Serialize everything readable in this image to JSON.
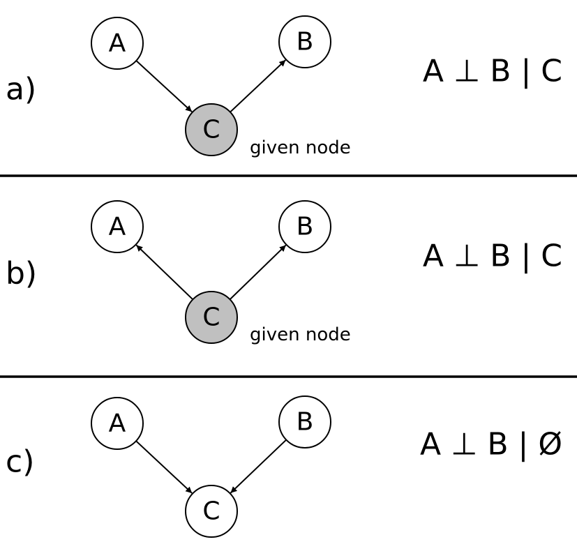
{
  "colors": {
    "given_fill": "#c0c0c0",
    "node_fill": "#ffffff",
    "stroke": "#000000"
  },
  "panels": [
    {
      "label": "a)",
      "nodes": [
        {
          "id": "A",
          "label": "A",
          "given": false
        },
        {
          "id": "B",
          "label": "B",
          "given": false
        },
        {
          "id": "C",
          "label": "C",
          "given": true
        }
      ],
      "edges": [
        {
          "from": "A",
          "to": "C"
        },
        {
          "from": "C",
          "to": "B"
        }
      ],
      "given_label": "given node",
      "formula": "A ⊥ B | C"
    },
    {
      "label": "b)",
      "nodes": [
        {
          "id": "A",
          "label": "A",
          "given": false
        },
        {
          "id": "B",
          "label": "B",
          "given": false
        },
        {
          "id": "C",
          "label": "C",
          "given": true
        }
      ],
      "edges": [
        {
          "from": "C",
          "to": "A"
        },
        {
          "from": "C",
          "to": "B"
        }
      ],
      "given_label": "given node",
      "formula": "A ⊥ B | C"
    },
    {
      "label": "c)",
      "nodes": [
        {
          "id": "A",
          "label": "A",
          "given": false
        },
        {
          "id": "B",
          "label": "B",
          "given": false
        },
        {
          "id": "C",
          "label": "C",
          "given": false
        }
      ],
      "edges": [
        {
          "from": "A",
          "to": "C"
        },
        {
          "from": "B",
          "to": "C"
        }
      ],
      "given_label": "",
      "formula": "A ⊥ B | Ø"
    }
  ]
}
